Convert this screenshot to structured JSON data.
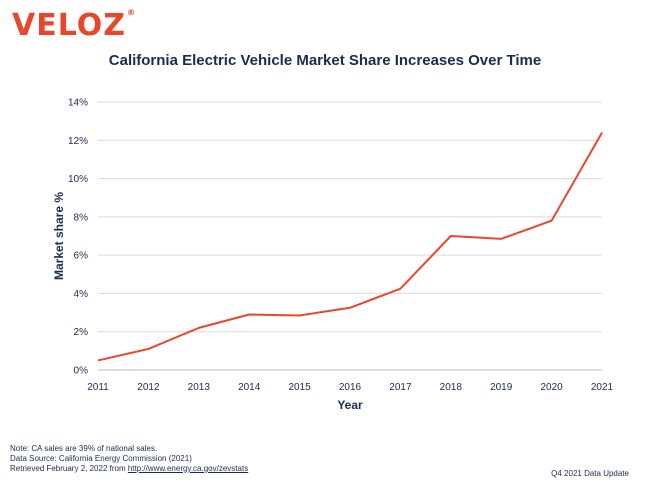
{
  "brand": {
    "name": "VELOZ",
    "mark": "®",
    "color": "#e8472b"
  },
  "footer": {
    "note": "Note: CA sales are 39% of national sales.",
    "source": "Data Source: California Energy Commission (2021)",
    "retrieved_prefix": "Retrieved February 2, 2022 from ",
    "retrieved_link": "http://www.energy.ca.gov/zevstats",
    "update": "Q4 2021 Data Update"
  },
  "chart_data": {
    "type": "line",
    "title": "California Electric Vehicle Market Share Increases Over Time",
    "xlabel": "Year",
    "ylabel": "Market share %",
    "categories": [
      "2011",
      "2012",
      "2013",
      "2014",
      "2015",
      "2016",
      "2017",
      "2018",
      "2019",
      "2020",
      "2021"
    ],
    "series": [
      {
        "name": "Market share %",
        "color": "#e8472b",
        "values": [
          0.5,
          1.1,
          2.2,
          2.9,
          2.85,
          3.25,
          4.25,
          7.0,
          6.85,
          7.8,
          12.4
        ]
      }
    ],
    "ylim": [
      0,
      14
    ],
    "yticks": [
      0,
      2,
      4,
      6,
      8,
      10,
      12,
      14
    ],
    "ytick_labels": [
      "0%",
      "2%",
      "4%",
      "6%",
      "8%",
      "10%",
      "12%",
      "14%"
    ],
    "grid": true,
    "colors": {
      "grid": "#d9d9d9",
      "text": "#1c2b52"
    }
  }
}
